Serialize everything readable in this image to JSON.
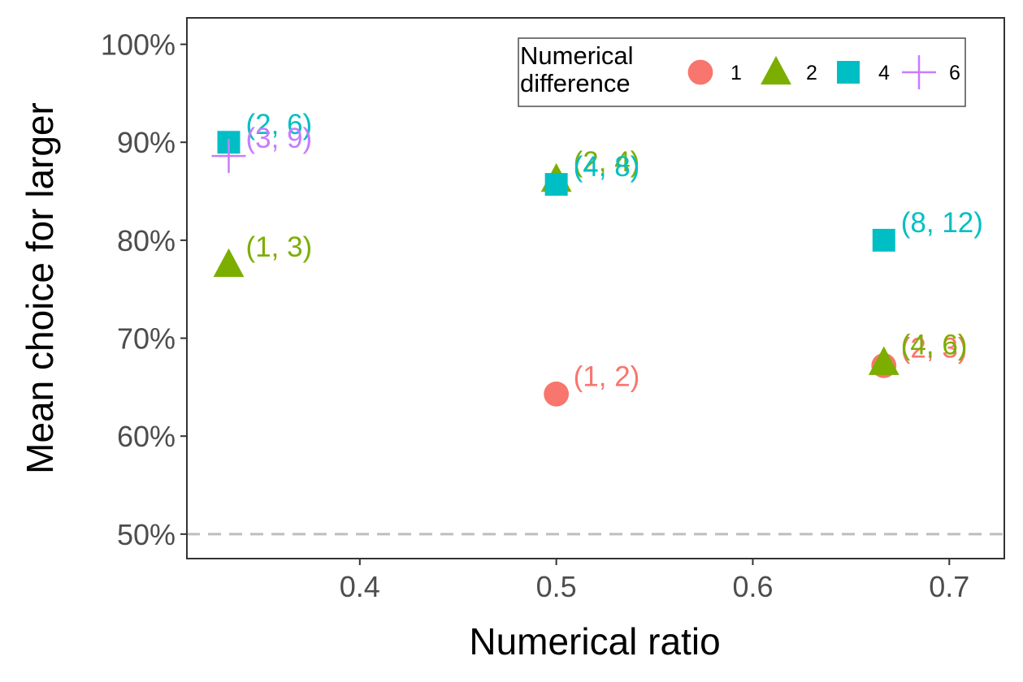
{
  "chart_data": {
    "type": "scatter",
    "xlabel": "Numerical ratio",
    "ylabel": "Mean choice for larger",
    "xlim": [
      0.312,
      0.728
    ],
    "ylim": [
      0.475,
      1.027
    ],
    "x_ticks": [
      0.4,
      0.5,
      0.6,
      0.7
    ],
    "x_tick_labels": [
      "0.4",
      "0.5",
      "0.6",
      "0.7"
    ],
    "y_ticks": [
      0.5,
      0.6,
      0.7,
      0.8,
      0.9,
      1.0
    ],
    "y_tick_labels": [
      "50%",
      "60%",
      "70%",
      "80%",
      "90%",
      "100%"
    ],
    "reference_line": {
      "y": 0.5,
      "style": "dashed",
      "color": "#bebebe"
    },
    "grid": false,
    "legend": {
      "title_lines": [
        "Numerical",
        "difference"
      ],
      "position": "top-right",
      "orientation": "horizontal"
    },
    "series": [
      {
        "name": "1",
        "shape": "circle",
        "color": "#F8766D",
        "points": [
          {
            "x": 0.5,
            "y": 0.643,
            "label": "(1, 2)"
          },
          {
            "x": 0.6667,
            "y": 0.672,
            "label": "(2, 3)"
          }
        ]
      },
      {
        "name": "2",
        "shape": "triangle",
        "color": "#7CAE00",
        "points": [
          {
            "x": 0.3333,
            "y": 0.775,
            "label": "(1, 3)"
          },
          {
            "x": 0.5,
            "y": 0.862,
            "label": "(2, 4)"
          },
          {
            "x": 0.6667,
            "y": 0.675,
            "label": "(4, 6)"
          }
        ]
      },
      {
        "name": "4",
        "shape": "square",
        "color": "#00BFC4",
        "points": [
          {
            "x": 0.3333,
            "y": 0.9,
            "label": "(2, 6)"
          },
          {
            "x": 0.5,
            "y": 0.857,
            "label": "(4, 8)"
          },
          {
            "x": 0.6667,
            "y": 0.8,
            "label": "(8, 12)"
          }
        ]
      },
      {
        "name": "6",
        "shape": "plus",
        "color": "#C77CFF",
        "points": [
          {
            "x": 0.3333,
            "y": 0.886,
            "label": "(3, 9)"
          }
        ]
      }
    ]
  }
}
